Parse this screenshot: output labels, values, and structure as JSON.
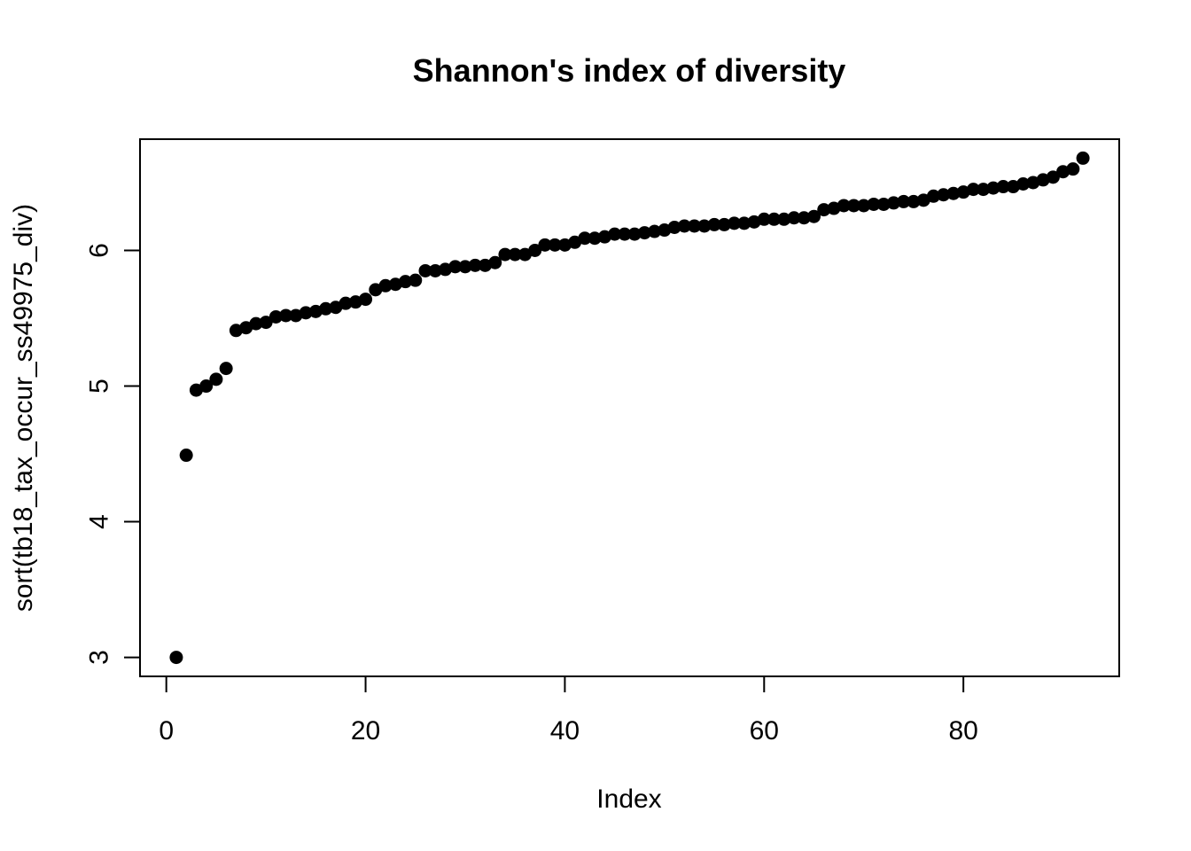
{
  "chart_data": {
    "type": "scatter",
    "title": "Shannon's index of diversity",
    "xlabel": "Index",
    "ylabel": "sort(tb18_tax_occur_ss49975_div)",
    "xlim": [
      -2.64,
      95.64
    ],
    "ylim": [
      2.86,
      6.82
    ],
    "xticks": [
      "0",
      "20",
      "40",
      "60",
      "80"
    ],
    "yticks": [
      "3",
      "4",
      "5",
      "6"
    ],
    "grid": false,
    "marker": "filled-circle",
    "point_color": "#000000",
    "series": [
      {
        "x": [
          1,
          2,
          3,
          4,
          5,
          6,
          7,
          8,
          9,
          10,
          11,
          12,
          13,
          14,
          15,
          16,
          17,
          18,
          19,
          20,
          21,
          22,
          23,
          24,
          25,
          26,
          27,
          28,
          29,
          30,
          31,
          32,
          33,
          34,
          35,
          36,
          37,
          38,
          39,
          40,
          41,
          42,
          43,
          44,
          45,
          46,
          47,
          48,
          49,
          50,
          51,
          52,
          53,
          54,
          55,
          56,
          57,
          58,
          59,
          60,
          61,
          62,
          63,
          64,
          65,
          66,
          67,
          68,
          69,
          70,
          71,
          72,
          73,
          74,
          75,
          76,
          77,
          78,
          79,
          80,
          81,
          82,
          83,
          84,
          85,
          86,
          87,
          88,
          89,
          90,
          91,
          92
        ],
        "y": [
          3.0,
          4.49,
          4.97,
          5.0,
          5.05,
          5.13,
          5.41,
          5.43,
          5.46,
          5.47,
          5.51,
          5.52,
          5.52,
          5.54,
          5.55,
          5.57,
          5.58,
          5.61,
          5.62,
          5.64,
          5.71,
          5.74,
          5.75,
          5.77,
          5.78,
          5.85,
          5.85,
          5.86,
          5.88,
          5.88,
          5.89,
          5.89,
          5.91,
          5.97,
          5.97,
          5.97,
          6.0,
          6.04,
          6.04,
          6.04,
          6.06,
          6.09,
          6.09,
          6.1,
          6.12,
          6.12,
          6.12,
          6.13,
          6.14,
          6.15,
          6.17,
          6.18,
          6.18,
          6.18,
          6.19,
          6.19,
          6.2,
          6.2,
          6.21,
          6.23,
          6.23,
          6.23,
          6.24,
          6.24,
          6.25,
          6.3,
          6.31,
          6.33,
          6.33,
          6.33,
          6.34,
          6.34,
          6.35,
          6.36,
          6.36,
          6.37,
          6.4,
          6.41,
          6.42,
          6.43,
          6.45,
          6.45,
          6.46,
          6.47,
          6.47,
          6.49,
          6.5,
          6.52,
          6.54,
          6.58,
          6.6,
          6.68
        ]
      }
    ]
  }
}
